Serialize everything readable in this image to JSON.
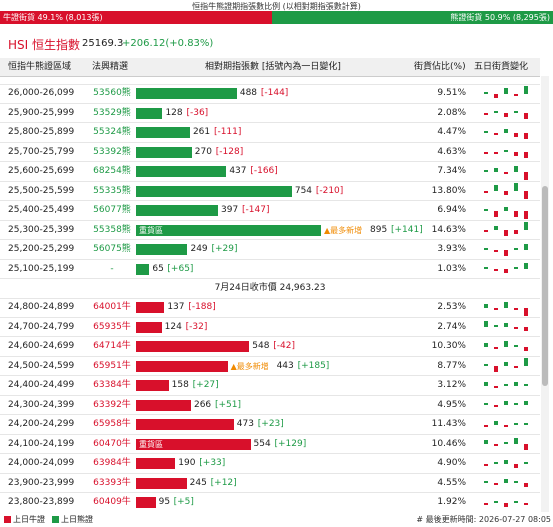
{
  "header": {
    "title": "恒指牛熊證期指張數比例 (以相對期指張數計算)",
    "ratio": {
      "bull_label": "牛證街貨 49.1% (8,013張)",
      "bull": 49.1,
      "bear_label": "熊證街貨 50.9% (8,295張)",
      "bear": 50.9
    },
    "index_name": "HSI 恒生指數",
    "index_value": "25169.3",
    "index_change": "+206.12(+0.83%)"
  },
  "columns": [
    "恒指牛熊證區域",
    "法興精選",
    "相對期指張數 [括號內為一日變化]",
    "街貨佔比(%)",
    "五日街貨變化"
  ],
  "bear_rows": [
    {
      "range": "26,000-26,099",
      "code": "53560熊",
      "count": 488,
      "change": "[-144]",
      "pct": "9.51%",
      "trend": [
        1,
        -2,
        3,
        -1,
        4
      ]
    },
    {
      "range": "25,900-25,999",
      "code": "53529熊",
      "count": 128,
      "change": "[-36]",
      "pct": "2.08%",
      "trend": [
        -1,
        1,
        -2,
        1,
        -3
      ]
    },
    {
      "range": "25,800-25,899",
      "code": "55324熊",
      "count": 261,
      "change": "[-111]",
      "pct": "4.47%",
      "trend": [
        1,
        -1,
        2,
        -2,
        -3
      ]
    },
    {
      "range": "25,700-25,799",
      "code": "53392熊",
      "count": 270,
      "change": "[-128]",
      "pct": "4.63%",
      "trend": [
        -1,
        -1,
        1,
        -2,
        -3
      ]
    },
    {
      "range": "25,600-25,699",
      "code": "68254熊",
      "count": 437,
      "change": "[-166]",
      "pct": "7.34%",
      "trend": [
        1,
        2,
        -1,
        3,
        -4
      ]
    },
    {
      "range": "25,500-25,599",
      "code": "55335熊",
      "count": 754,
      "change": "[-210]",
      "pct": "13.80%",
      "trend": [
        -1,
        3,
        -2,
        4,
        -4
      ]
    },
    {
      "range": "25,400-25,499",
      "code": "56077熊",
      "count": 397,
      "change": "[-147]",
      "pct": "6.94%",
      "trend": [
        1,
        -3,
        2,
        -3,
        -4
      ]
    },
    {
      "range": "25,300-25,399",
      "code": "55358熊",
      "count": 895,
      "change": "[+141]",
      "pct": "14.63%",
      "tag": "重貨區",
      "note": "▲最多新增",
      "trend": [
        -1,
        2,
        -3,
        -2,
        4
      ]
    },
    {
      "range": "25,200-25,299",
      "code": "56075熊",
      "count": 249,
      "change": "[+29]",
      "pct": "3.93%",
      "trend": [
        1,
        -1,
        -3,
        1,
        3
      ]
    },
    {
      "range": "25,100-25,199",
      "code": "-",
      "count": 65,
      "change": "[+65]",
      "pct": "1.03%",
      "trend": [
        1,
        -1,
        -2,
        1,
        3
      ]
    }
  ],
  "divider": "7月24日收市價 24,963.23",
  "bull_rows": [
    {
      "range": "24,800-24,899",
      "code": "64001牛",
      "count": 137,
      "change": "[-188]",
      "pct": "2.53%",
      "trend": [
        2,
        -1,
        3,
        -1,
        -4
      ]
    },
    {
      "range": "24,700-24,799",
      "code": "65935牛",
      "count": 124,
      "change": "[-32]",
      "pct": "2.74%",
      "trend": [
        3,
        1,
        2,
        -1,
        -2
      ]
    },
    {
      "range": "24,600-24,699",
      "code": "64714牛",
      "count": 548,
      "change": "[-42]",
      "pct": "10.30%",
      "trend": [
        2,
        -1,
        3,
        1,
        -2
      ]
    },
    {
      "range": "24,500-24,599",
      "code": "65951牛",
      "count": 443,
      "change": "[+185]",
      "pct": "8.77%",
      "note": "▲最多新增",
      "trend": [
        1,
        -3,
        2,
        -1,
        4
      ]
    },
    {
      "range": "24,400-24,499",
      "code": "63384牛",
      "count": 158,
      "change": "[+27]",
      "pct": "3.12%",
      "trend": [
        2,
        -1,
        1,
        2,
        1
      ]
    },
    {
      "range": "24,300-24,399",
      "code": "63392牛",
      "count": 266,
      "change": "[+51]",
      "pct": "4.95%",
      "trend": [
        1,
        -1,
        2,
        1,
        2
      ]
    },
    {
      "range": "24,200-24,299",
      "code": "65958牛",
      "count": 473,
      "change": "[+23]",
      "pct": "11.43%",
      "trend": [
        -1,
        2,
        -1,
        1,
        1
      ]
    },
    {
      "range": "24,100-24,199",
      "code": "60470牛",
      "count": 554,
      "change": "[+129]",
      "pct": "10.46%",
      "tag": "重貨區",
      "trend": [
        2,
        -1,
        1,
        3,
        -3
      ]
    },
    {
      "range": "24,000-24,099",
      "code": "63984牛",
      "count": 190,
      "change": "[+33]",
      "pct": "4.90%",
      "trend": [
        -1,
        1,
        2,
        -2,
        1
      ]
    },
    {
      "range": "23,900-23,999",
      "code": "63393牛",
      "count": 245,
      "change": "[+12]",
      "pct": "4.55%",
      "trend": [
        1,
        -1,
        2,
        1,
        -2
      ]
    },
    {
      "range": "23,800-23,899",
      "code": "60409牛",
      "count": 95,
      "change": "[+5]",
      "pct": "1.92%",
      "trend": [
        -1,
        1,
        -2,
        1,
        -1
      ]
    }
  ],
  "footer": {
    "legend_bull": "上日牛證",
    "legend_bear": "上日熊證",
    "updated": "# 最後更新時間: 2026-07-27 08:05"
  }
}
